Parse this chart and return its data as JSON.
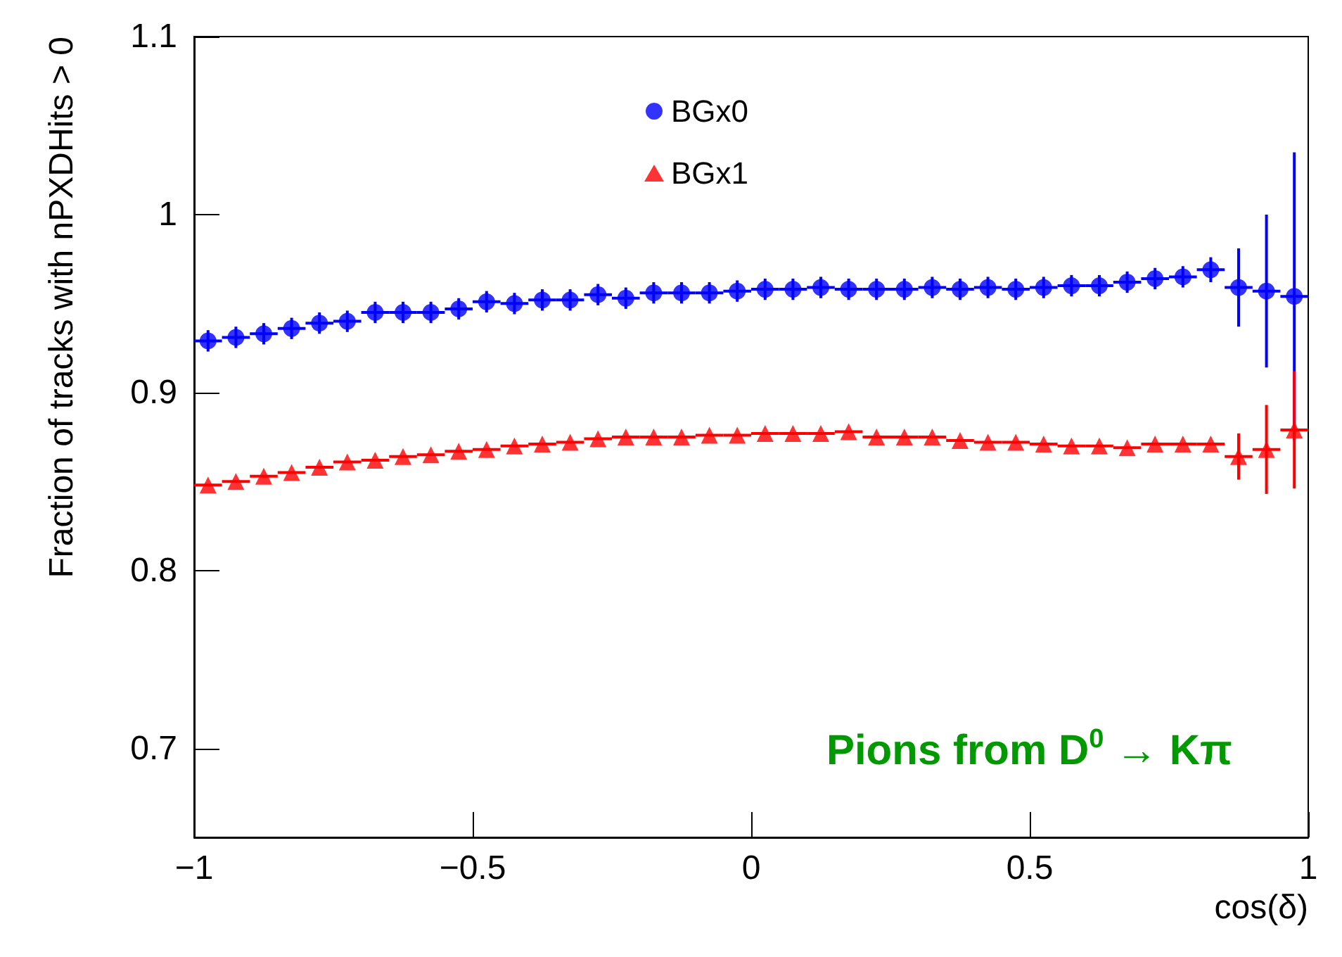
{
  "chart_data": {
    "type": "scatter",
    "xlabel": "cos(δ)",
    "ylabel": "Fraction of tracks with nPXDHits > 0",
    "x": [
      -0.975,
      -0.925,
      -0.875,
      -0.825,
      -0.775,
      -0.725,
      -0.675,
      -0.625,
      -0.575,
      -0.525,
      -0.475,
      -0.425,
      -0.375,
      -0.325,
      -0.275,
      -0.225,
      -0.175,
      -0.125,
      -0.075,
      -0.025,
      0.025,
      0.075,
      0.125,
      0.175,
      0.225,
      0.275,
      0.325,
      0.375,
      0.425,
      0.475,
      0.525,
      0.575,
      0.625,
      0.675,
      0.725,
      0.775,
      0.825,
      0.875,
      0.925,
      0.975
    ],
    "series": [
      {
        "name": "BGx0",
        "color": "#0000ff",
        "marker": "circle",
        "values": [
          0.929,
          0.931,
          0.933,
          0.936,
          0.939,
          0.94,
          0.945,
          0.945,
          0.945,
          0.947,
          0.951,
          0.95,
          0.952,
          0.952,
          0.955,
          0.953,
          0.956,
          0.956,
          0.956,
          0.957,
          0.958,
          0.958,
          0.959,
          0.958,
          0.958,
          0.958,
          0.959,
          0.958,
          0.959,
          0.958,
          0.959,
          0.96,
          0.96,
          0.962,
          0.964,
          0.965,
          0.969,
          0.959,
          0.957,
          0.954
        ],
        "errors": [
          0.006,
          0.006,
          0.006,
          0.006,
          0.006,
          0.006,
          0.006,
          0.006,
          0.006,
          0.006,
          0.006,
          0.006,
          0.006,
          0.006,
          0.006,
          0.006,
          0.006,
          0.006,
          0.006,
          0.006,
          0.006,
          0.006,
          0.006,
          0.006,
          0.006,
          0.006,
          0.006,
          0.006,
          0.006,
          0.006,
          0.006,
          0.006,
          0.006,
          0.006,
          0.006,
          0.006,
          0.007,
          0.022,
          0.043,
          0.081
        ],
        "xerrors": [
          0.025,
          0.025,
          0.025,
          0.025,
          0.025,
          0.025,
          0.025,
          0.025,
          0.025,
          0.025,
          0.025,
          0.025,
          0.025,
          0.025,
          0.025,
          0.025,
          0.025,
          0.025,
          0.025,
          0.025,
          0.025,
          0.025,
          0.025,
          0.025,
          0.025,
          0.025,
          0.025,
          0.025,
          0.025,
          0.025,
          0.025,
          0.025,
          0.025,
          0.025,
          0.025,
          0.025,
          0.025,
          0.025,
          0.025,
          0.025
        ]
      },
      {
        "name": "BGx1",
        "color": "#ff0000",
        "marker": "triangle",
        "values": [
          0.848,
          0.85,
          0.853,
          0.855,
          0.858,
          0.861,
          0.862,
          0.864,
          0.865,
          0.867,
          0.868,
          0.87,
          0.871,
          0.872,
          0.874,
          0.875,
          0.875,
          0.875,
          0.876,
          0.876,
          0.877,
          0.877,
          0.877,
          0.878,
          0.875,
          0.875,
          0.875,
          0.873,
          0.872,
          0.872,
          0.871,
          0.87,
          0.87,
          0.869,
          0.871,
          0.871,
          0.871,
          0.864,
          0.868,
          0.879
        ],
        "errors": [
          null,
          null,
          null,
          null,
          null,
          null,
          null,
          null,
          null,
          null,
          null,
          null,
          null,
          null,
          null,
          null,
          null,
          null,
          null,
          null,
          null,
          null,
          null,
          null,
          null,
          null,
          null,
          null,
          null,
          null,
          null,
          null,
          null,
          null,
          null,
          null,
          null,
          0.013,
          0.025,
          0.033
        ],
        "xerrors": [
          0.025,
          0.025,
          0.025,
          0.025,
          0.025,
          0.025,
          0.025,
          0.025,
          0.025,
          0.025,
          0.025,
          0.025,
          0.025,
          0.025,
          0.025,
          0.025,
          0.025,
          0.025,
          0.025,
          0.025,
          0.025,
          0.025,
          0.025,
          0.025,
          0.025,
          0.025,
          0.025,
          0.025,
          0.025,
          0.025,
          0.025,
          0.025,
          0.025,
          0.025,
          0.025,
          0.025,
          0.025,
          0.025,
          0.025,
          0.025
        ]
      }
    ],
    "xlim": [
      -1,
      1
    ],
    "xticks": [
      {
        "value": -1,
        "label": "−1"
      },
      {
        "value": -0.5,
        "label": "−0.5"
      },
      0,
      0.5,
      1
    ],
    "ylim": [
      0.65,
      1.1
    ],
    "yticks": [
      0.7,
      0.8,
      0.9,
      {
        "value": 1,
        "label": "1"
      },
      1.1
    ],
    "grid": false,
    "legend": "top",
    "annotations": [
      "Pions from D$^{0}$ → Kπ"
    ]
  }
}
